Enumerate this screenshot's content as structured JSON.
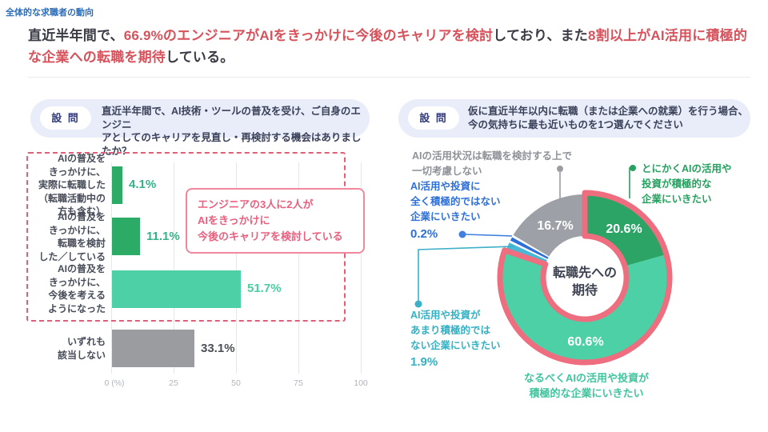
{
  "meta": {
    "section_label": "全体的な求職者の動向"
  },
  "headline": {
    "segments": [
      {
        "text": "直近半年間で、",
        "emphasis": false
      },
      {
        "text": "66.9%のエンジニアがAIをきっかけに今後のキャリアを検討",
        "emphasis": true
      },
      {
        "text": "しており、また",
        "emphasis": false
      },
      {
        "text": "8割以上がAI活用に積極的な企業への転職を期待",
        "emphasis": true
      },
      {
        "text": "している。",
        "emphasis": false
      }
    ]
  },
  "left_panel": {
    "question_badge": "設 問",
    "question_text": "直近半年間で、AI技術・ツールの普及を受け、ご自身のエンジニ\nアとしてのキャリアを見直し・再検討する機会はありましたか？",
    "annotation": "エンジニアの3人に2人が\nAIをきっかけに\n今後のキャリアを検討している"
  },
  "right_panel": {
    "question_badge": "設 問",
    "question_text": "仮に直近半年以内に転職（または企業への就業）を行う場合、\n今の気持ちに最も近いものを1つ選んでください",
    "center_label": "転職先への\n期待"
  },
  "chart_data": [
    {
      "type": "bar",
      "orientation": "horizontal",
      "categories": [
        "AIの普及を\nきっかけに、\n実際に転職した\n（転職活動中の\n方も含む）",
        "AIの普及を\nきっかけに、\n転職を検討\nした／している",
        "AIの普及を\nきっかけに、\n今後を考える\nようになった",
        "いずれも\n該当しない"
      ],
      "values": [
        4.1,
        11.1,
        51.7,
        33.1
      ],
      "value_labels": [
        "4.1%",
        "11.1%",
        "51.7%",
        "33.1%"
      ],
      "bar_colors": [
        "#2bab66",
        "#2bab66",
        "#4dd0a5",
        "#9b9ca0"
      ],
      "value_label_colors": [
        "#36b287",
        "#36b287",
        "#4bcda2",
        "#4d4f56"
      ],
      "x_ticks": [
        "0 (%)",
        "25",
        "50",
        "75",
        "100"
      ],
      "x_tick_values": [
        0,
        25,
        50,
        75,
        100
      ],
      "xlim": [
        0,
        100
      ],
      "grid": true,
      "highlight_note": "first three bars enclosed by pink dashed box",
      "annotation": "エンジニアの3人に2人がAIをきっかけに今後のキャリアを検討している"
    },
    {
      "type": "pie",
      "subtype": "donut",
      "title": "転職先への期待",
      "segments": [
        {
          "label": "とにかくAIの活用や\n投資が積極的な\n企業にいきたい",
          "value": 20.6,
          "pct_label": "20.6%",
          "color": "#2ca466",
          "highlighted": true
        },
        {
          "label": "なるべくAIの活用や投資が\n積極的な企業にいきたい",
          "value": 60.6,
          "pct_label": "60.6%",
          "color": "#4dd0a5",
          "highlighted": true
        },
        {
          "label": "AI活用や投資が\nあまり積極的では\nない企業にいきたい",
          "value": 1.9,
          "pct_label": "1.9%",
          "color": "#47b8d6",
          "highlighted": false
        },
        {
          "label": "AI活用や投資に\n全く積極的ではない\n企業にいきたい",
          "value": 0.2,
          "pct_label": "0.2%",
          "color": "#2e6fd9",
          "highlighted": false
        },
        {
          "label": "AIの活用状況は転職を検討する上で\n一切考慮しない",
          "value": 16.7,
          "pct_label": "16.7%",
          "color": "#9da0a6",
          "highlighted": false
        }
      ],
      "highlight_ring_color": "#ee6d7e",
      "highlight_total": 81.2,
      "legend_position": "around"
    }
  ],
  "colors": {
    "accent_red": "#d8525c",
    "headline_dark": "#3b3b46",
    "section_blue": "#2d6cb7",
    "question_bg": "#e9ecf9",
    "badge_text": "#323c7d",
    "dashed_box_pink": "#df5f78",
    "annotation_pink": "#e9607f"
  }
}
